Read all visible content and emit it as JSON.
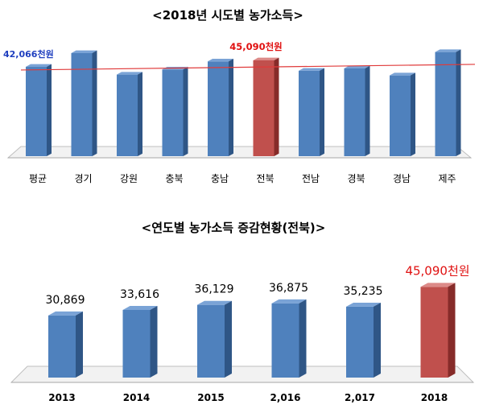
{
  "colors": {
    "bar_front": "#4f81bd",
    "bar_top": "#7aa3d6",
    "bar_side": "#2f5686",
    "hl_front": "#c0504d",
    "hl_top": "#dc8a88",
    "hl_side": "#862b29",
    "avg_line": "#e03a3a",
    "avg_label": "#1f3fbf",
    "hl_label": "#e01010"
  },
  "chart_data": [
    {
      "type": "bar",
      "title": "<2018년 시도별 농가소득>",
      "categories": [
        "평균",
        "경기",
        "강원",
        "충북",
        "충남",
        "전북",
        "전남",
        "경북",
        "경남",
        "제주"
      ],
      "values": [
        42066,
        48500,
        38400,
        40800,
        44600,
        45090,
        40200,
        41300,
        38000,
        49000
      ],
      "highlight_index": 5,
      "reference_line": 42066,
      "annotations": [
        {
          "label": "42,066천원",
          "target": "reference_line"
        },
        {
          "label": "45,090천원",
          "target": "highlight_bar"
        }
      ],
      "grid": false,
      "legend": "none",
      "ylim": [
        0,
        50000
      ]
    },
    {
      "type": "bar",
      "title": "<연도별 농가소득 증감현황(전북)>",
      "categories": [
        "2013",
        "2014",
        "2015",
        "2,016",
        "2,017",
        "2018"
      ],
      "values": [
        30869,
        33616,
        36129,
        36875,
        35235,
        45090
      ],
      "data_labels": [
        "30,869",
        "33,616",
        "36,129",
        "36,875",
        "35,235",
        "45,090천원"
      ],
      "highlight_index": 5,
      "grid": false,
      "legend": "none",
      "ylim": [
        0,
        50000
      ]
    }
  ]
}
